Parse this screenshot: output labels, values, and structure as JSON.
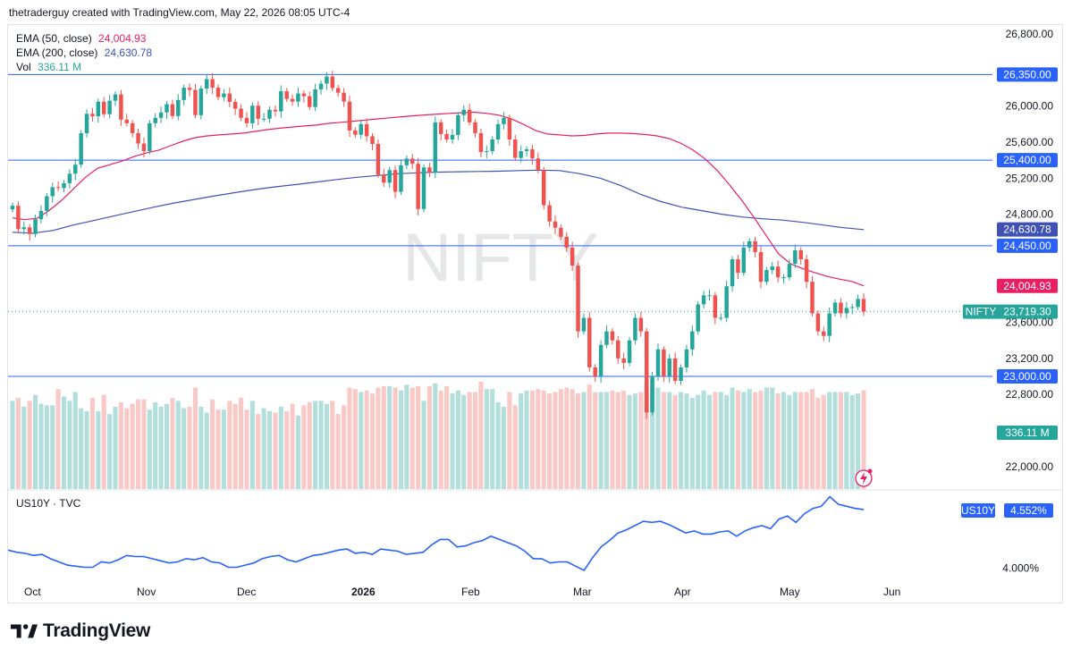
{
  "header": {
    "attribution": "thetraderguy created with TradingView.com, May 22, 2026 08:05 UTC-4"
  },
  "legend": {
    "ema50_label": "EMA (50, close)",
    "ema50_value": "24,004.93",
    "ema200_label": "EMA (200, close)",
    "ema200_value": "24,630.78",
    "vol_label": "Vol",
    "vol_value": "336.11 M"
  },
  "watermark": "NIFTY",
  "sub_pane": {
    "label": "US10Y · TVC"
  },
  "footer": {
    "brand": "TradingView"
  },
  "colors": {
    "up": "#26a69a",
    "down": "#ef5350",
    "ema50": "#e91e63",
    "ema200": "#3f51b5",
    "hline": "#2962ff",
    "us10y": "#2962ff",
    "vol_up": "#b2dfdb",
    "vol_down": "#f8c9c7"
  },
  "chart_data": [
    {
      "type": "candlestick",
      "symbol": "NIFTY",
      "last_price": "23,719.30",
      "y_ticks": [
        "26,800.00",
        "26,000.00",
        "25,600.00",
        "25,200.00",
        "24,800.00",
        "23,600.00",
        "23,200.00",
        "22,800.00",
        "22,000.00"
      ],
      "y_tick_values": [
        26800,
        26000,
        25600,
        25200,
        24800,
        23600,
        23200,
        22800,
        22000
      ],
      "ylim": [
        21750,
        26900
      ],
      "x_labels": [
        "Oct",
        "Nov",
        "Dec",
        "2026",
        "Feb",
        "Mar",
        "Apr",
        "May",
        "Jun"
      ],
      "horizontal_lines": [
        {
          "value": 26350,
          "label": "26,350.00"
        },
        {
          "value": 25400,
          "label": "25,400.00"
        },
        {
          "value": 24450,
          "label": "24,450.00"
        },
        {
          "value": 23000,
          "label": "23,000.00"
        }
      ],
      "price_tags": [
        {
          "label": "24,630.78",
          "value": 24630.78,
          "series": "EMA (200, close)"
        },
        {
          "label": "24,004.93",
          "value": 24004.93,
          "series": "EMA (50, close)"
        },
        {
          "label": "NIFTY",
          "value": 23719.3,
          "series": "NIFTY"
        },
        {
          "label": "23,719.30",
          "value": 23719.3,
          "series": "NIFTY"
        },
        {
          "label": "336.11 M",
          "value": 336.11,
          "series": "Vol"
        }
      ],
      "close": [
        24894,
        24634,
        24655,
        24580,
        24745,
        24837,
        25000,
        25100,
        25091,
        25145,
        25250,
        25350,
        25700,
        25915,
        25887,
        26049,
        25910,
        26060,
        26130,
        25850,
        25810,
        25700,
        25585,
        25500,
        25810,
        25870,
        25930,
        26021,
        25890,
        26068,
        26204,
        26180,
        25900,
        26195,
        26300,
        26206,
        26100,
        26140,
        26047,
        25972,
        25870,
        25810,
        26005,
        25860,
        25860,
        25960,
        25942,
        26165,
        26080,
        26050,
        26140,
        26110,
        25990,
        26186,
        26250,
        26328,
        26200,
        26149,
        26050,
        25730,
        25683,
        25800,
        25665,
        25580,
        25240,
        25150,
        25290,
        25049,
        25344,
        25418,
        25360,
        24858,
        25320,
        25260,
        25820,
        25690,
        25630,
        25680,
        25900,
        25960,
        25820,
        25700,
        25490,
        25500,
        25630,
        25800,
        25870,
        25630,
        25425,
        25500,
        25520,
        25420,
        25290,
        24900,
        24720,
        24650,
        24550,
        24430,
        24230,
        23500,
        23650,
        23100,
        23000,
        23350,
        23500,
        23400,
        23200,
        23150,
        23400,
        23650,
        23500,
        22600,
        23000,
        23300,
        23000,
        23200,
        22950,
        23100,
        23300,
        23500,
        23800,
        23900,
        23900,
        23650,
        23650,
        24000,
        24300,
        24150,
        24430,
        24500,
        24380,
        24050,
        24180,
        24220,
        24100,
        24100,
        24250,
        24400,
        24300,
        24050,
        23700,
        23500,
        23450,
        23700,
        23820,
        23700,
        23760,
        23770,
        23860,
        23719
      ],
      "ema50": [
        24760,
        24740,
        24755,
        24840,
        24950,
        25080,
        25210,
        25310,
        25350,
        25390,
        25440,
        25480,
        25510,
        25560,
        25610,
        25650,
        25670,
        25680,
        25690,
        25700,
        25720,
        25740,
        25755,
        25768,
        25780,
        25790,
        25808,
        25820,
        25832,
        25845,
        25858,
        25870,
        25882,
        25893,
        25903,
        25912,
        25920,
        25927,
        25933,
        25920,
        25900,
        25860,
        25800,
        25730,
        25690,
        25680,
        25670,
        25675,
        25690,
        25700,
        25700,
        25695,
        25685,
        25670,
        25640,
        25585,
        25510,
        25410,
        25280,
        25120,
        24950,
        24760,
        24560,
        24360,
        24250,
        24195,
        24150,
        24110,
        24080,
        24055,
        24005
      ],
      "ema200": [
        24600,
        24590,
        24620,
        24680,
        24730,
        24780,
        24830,
        24880,
        24925,
        24965,
        25005,
        25040,
        25075,
        25105,
        25130,
        25158,
        25185,
        25210,
        25230,
        25250,
        25260,
        25268,
        25272,
        25275,
        25278,
        25285,
        25290,
        25285,
        25250,
        25200,
        25120,
        25020,
        24940,
        24880,
        24840,
        24800,
        24770,
        24750,
        24735,
        24710,
        24680,
        24650,
        24630
      ],
      "volume": [
        300,
        310,
        280,
        300,
        320,
        290,
        285,
        285,
        340,
        315,
        300,
        330,
        275,
        265,
        310,
        265,
        320,
        255,
        280,
        295,
        275,
        290,
        305,
        305,
        270,
        295,
        280,
        290,
        310,
        300,
        275,
        280,
        345,
        280,
        260,
        305,
        270,
        270,
        300,
        290,
        310,
        270,
        300,
        255,
        275,
        265,
        260,
        280,
        265,
        290,
        250,
        285,
        295,
        300,
        300,
        290,
        300,
        255,
        285,
        345,
        340,
        330,
        335,
        325,
        345,
        350,
        350,
        345,
        335,
        355,
        345,
        350,
        300,
        350,
        360,
        335,
        350,
        325,
        335,
        320,
        330,
        330,
        365,
        340,
        340,
        295,
        280,
        330,
        285,
        325,
        335,
        335,
        340,
        335,
        325,
        330,
        340,
        345,
        340,
        325,
        330,
        355,
        330,
        330,
        330,
        335,
        330,
        335,
        320,
        325,
        330,
        350,
        355,
        345,
        330,
        330,
        320,
        330,
        325,
        310,
        320,
        335,
        320,
        330,
        330,
        320,
        345,
        335,
        330,
        340,
        330,
        335,
        345,
        345,
        325,
        330,
        320,
        330,
        330,
        330,
        340,
        310,
        320,
        330,
        330,
        330,
        330,
        320,
        325,
        336.11
      ],
      "us10y_ylim": [
        3.88,
        4.7
      ],
      "us10y_tick": "4.000%",
      "us10y_last": "4.552%",
      "us10y_symbol": "US10Y",
      "us10y": [
        4.17,
        4.15,
        4.14,
        4.12,
        4.13,
        4.09,
        4.06,
        4.03,
        4.02,
        4.01,
        4.01,
        4.06,
        4.05,
        4.08,
        4.12,
        4.11,
        4.11,
        4.09,
        4.07,
        4.05,
        4.06,
        4.09,
        4.08,
        4.1,
        4.06,
        4.05,
        4.01,
        4.01,
        4.03,
        4.05,
        4.09,
        4.11,
        4.12,
        4.08,
        4.06,
        4.09,
        4.12,
        4.13,
        4.15,
        4.17,
        4.18,
        4.14,
        4.15,
        4.13,
        4.18,
        4.17,
        4.16,
        4.13,
        4.14,
        4.15,
        4.22,
        4.27,
        4.27,
        4.2,
        4.21,
        4.24,
        4.26,
        4.3,
        4.27,
        4.24,
        4.21,
        4.16,
        4.09,
        4.09,
        4.05,
        4.06,
        4.06,
        4.02,
        3.98,
        4.1,
        4.2,
        4.26,
        4.33,
        4.36,
        4.4,
        4.44,
        4.43,
        4.44,
        4.41,
        4.37,
        4.33,
        4.35,
        4.32,
        4.32,
        4.34,
        4.35,
        4.3,
        4.35,
        4.38,
        4.4,
        4.37,
        4.46,
        4.49,
        4.43,
        4.51,
        4.56,
        4.58,
        4.67,
        4.6,
        4.58,
        4.56,
        4.55
      ]
    }
  ]
}
